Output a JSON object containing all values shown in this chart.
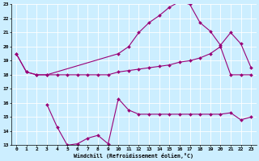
{
  "xlabel": "Windchill (Refroidissement éolien,°C)",
  "bg_color": "#cceeff",
  "line_color": "#990077",
  "grid_color": "#ffffff",
  "xmin": 0,
  "xmax": 23,
  "ymin": 13,
  "ymax": 23,
  "line1_x": [
    0,
    1,
    2,
    3,
    10,
    11,
    12,
    13,
    14,
    15,
    16,
    17,
    18,
    19,
    20,
    21,
    22,
    23
  ],
  "line1_y": [
    19.5,
    18.2,
    18.0,
    18.0,
    19.5,
    20.0,
    21.0,
    21.7,
    22.2,
    22.8,
    23.2,
    23.0,
    21.7,
    21.1,
    20.1,
    21.0,
    20.2,
    18.5
  ],
  "line2_x": [
    0,
    1,
    2,
    3,
    4,
    5,
    6,
    7,
    8,
    9,
    10,
    11,
    12,
    13,
    14,
    15,
    16,
    17,
    18,
    19,
    20,
    21,
    22,
    23
  ],
  "line2_y": [
    19.5,
    18.2,
    18.0,
    18.0,
    18.0,
    18.0,
    18.0,
    18.0,
    18.0,
    18.0,
    18.2,
    18.3,
    18.4,
    18.5,
    18.6,
    18.7,
    18.9,
    19.0,
    19.2,
    19.5,
    20.0,
    18.0,
    18.0,
    18.0
  ],
  "line3_x": [
    3,
    4,
    5,
    6,
    7,
    8,
    9,
    10,
    11,
    12,
    13,
    14,
    15,
    16,
    17,
    18,
    19,
    20,
    21,
    22,
    23
  ],
  "line3_y": [
    15.9,
    14.3,
    13.0,
    13.1,
    13.5,
    13.7,
    13.1,
    16.3,
    15.5,
    15.2,
    15.2,
    15.2,
    15.2,
    15.2,
    15.2,
    15.2,
    15.2,
    15.2,
    15.3,
    14.8,
    15.0
  ]
}
